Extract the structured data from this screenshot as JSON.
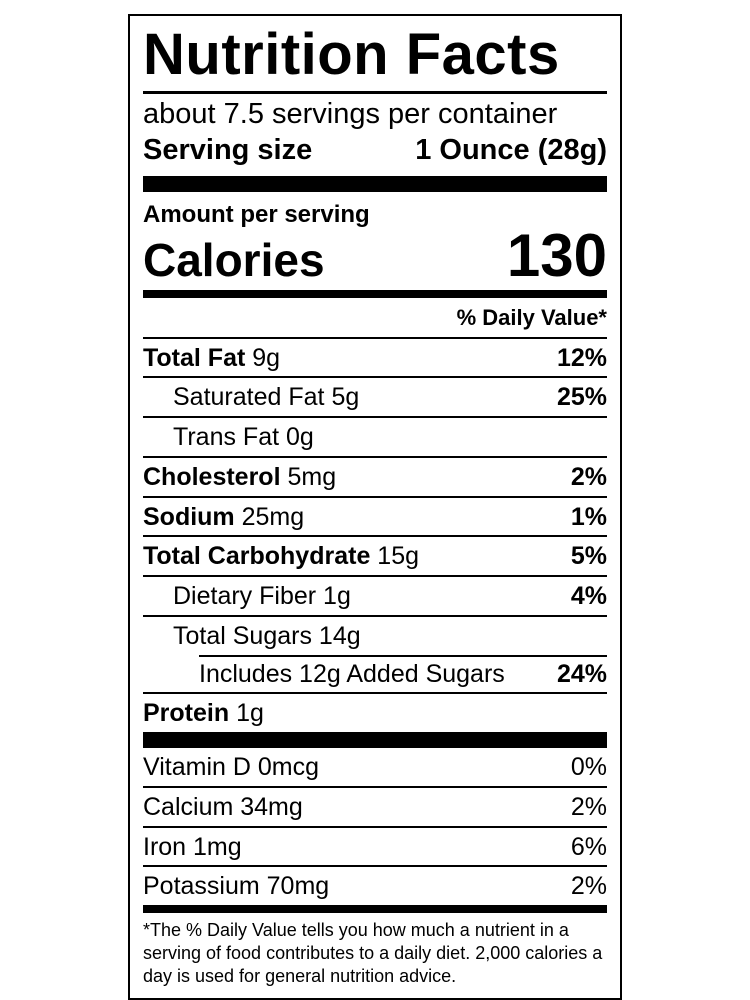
{
  "label": {
    "title": "Nutrition Facts",
    "servings_per_container": "about 7.5 servings per container",
    "serving_size": {
      "label": "Serving size",
      "value": "1 Ounce (28g)"
    },
    "amount_per_serving": "Amount per serving",
    "calories": {
      "label": "Calories",
      "value": "130"
    },
    "daily_value_header": "% Daily Value*",
    "nutrients": [
      {
        "name": "Total Fat",
        "amount": "9g",
        "dv": "12%",
        "bold": true,
        "indent": 0
      },
      {
        "name": "Saturated Fat",
        "amount": "5g",
        "dv": "25%",
        "bold": false,
        "indent": 1
      },
      {
        "name": "Trans Fat",
        "amount": "0g",
        "dv": "",
        "bold": false,
        "indent": 1
      },
      {
        "name": "Cholesterol",
        "amount": "5mg",
        "dv": "2%",
        "bold": true,
        "indent": 0
      },
      {
        "name": "Sodium",
        "amount": "25mg",
        "dv": "1%",
        "bold": true,
        "indent": 0
      },
      {
        "name": "Total Carbohydrate",
        "amount": "15g",
        "dv": "5%",
        "bold": true,
        "indent": 0
      },
      {
        "name": "Dietary Fiber",
        "amount": "1g",
        "dv": "4%",
        "bold": false,
        "indent": 1
      },
      {
        "name": "Total Sugars",
        "amount": "14g",
        "dv": "",
        "bold": false,
        "indent": 1
      },
      {
        "name": "Includes 12g Added Sugars",
        "amount": "",
        "dv": "24%",
        "bold": false,
        "indent": 2,
        "partial_rule": true
      },
      {
        "name": "Protein",
        "amount": "1g",
        "dv": "",
        "bold": true,
        "indent": 0
      }
    ],
    "vitamins": [
      {
        "name": "Vitamin D 0mcg",
        "dv": "0%"
      },
      {
        "name": "Calcium 34mg",
        "dv": "2%"
      },
      {
        "name": "Iron 1mg",
        "dv": "6%"
      },
      {
        "name": "Potassium 70mg",
        "dv": "2%"
      }
    ],
    "footnote_lines": [
      "*The % Daily Value tells you how much a nutrient in a",
      "serving of food contributes to a daily diet. 2,000 calories a",
      "day is used for general nutrition advice."
    ]
  }
}
